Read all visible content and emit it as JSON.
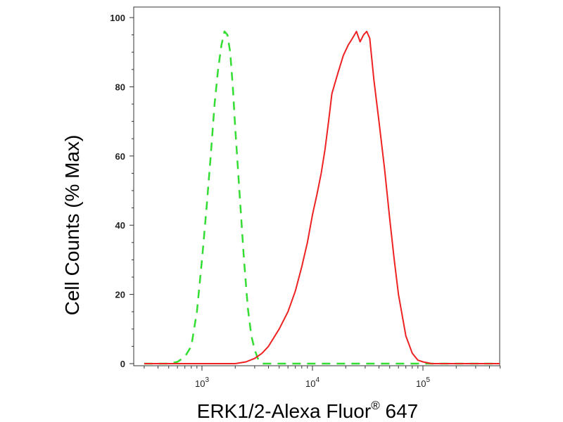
{
  "chart_data": {
    "type": "line",
    "xlabel": "ERK1/2-Alexa Fluor® 647",
    "xlabel_parts": {
      "main": "ERK1/2-Alexa Fluor",
      "sup": "®",
      "tail": " 647"
    },
    "ylabel": "Cell Counts (% Max)",
    "x_scale": "log",
    "xlim": [
      300,
      500000
    ],
    "ylim": [
      0,
      102
    ],
    "x_ticks": [
      {
        "value": 1000,
        "base": "10",
        "exp": "3"
      },
      {
        "value": 10000,
        "base": "10",
        "exp": "4"
      },
      {
        "value": 100000,
        "base": "10",
        "exp": "5"
      }
    ],
    "y_ticks": [
      {
        "value": 0,
        "label": "0"
      },
      {
        "value": 20,
        "label": "20"
      },
      {
        "value": 40,
        "label": "40"
      },
      {
        "value": 60,
        "label": "60"
      },
      {
        "value": 80,
        "label": "80"
      },
      {
        "value": 100,
        "label": "100"
      }
    ],
    "grid": false,
    "legend": "none",
    "series": [
      {
        "color": "#33dd33",
        "style": "dashed",
        "x": [
          300,
          500,
          600,
          700,
          800,
          900,
          1000,
          1100,
          1200,
          1300,
          1400,
          1500,
          1600,
          1700,
          1800,
          1900,
          2000,
          2200,
          2400,
          2600,
          2800,
          3000,
          3200,
          3500,
          4000,
          10000,
          100000,
          500000
        ],
        "y": [
          0,
          0,
          0.5,
          2,
          5,
          15,
          30,
          45,
          60,
          75,
          85,
          92,
          96,
          95,
          90,
          80,
          68,
          48,
          30,
          16,
          8,
          4,
          1.5,
          0,
          0,
          0,
          0,
          0
        ]
      },
      {
        "color": "#ee2222",
        "style": "solid",
        "x": [
          300,
          1000,
          2000,
          2500,
          3000,
          3500,
          4000,
          5000,
          6000,
          7000,
          8000,
          9000,
          10000,
          11000,
          12000,
          13000,
          14000,
          15000,
          17000,
          19000,
          21000,
          23000,
          25000,
          27000,
          29000,
          31000,
          33000,
          36000,
          40000,
          45000,
          50000,
          55000,
          60000,
          70000,
          80000,
          90000,
          100000,
          120000,
          150000,
          200000,
          500000
        ],
        "y": [
          0,
          0,
          0,
          0.5,
          1.5,
          3,
          5,
          10,
          15,
          21,
          28,
          35,
          43,
          49,
          55,
          62,
          70,
          78,
          84,
          89,
          92,
          94,
          96,
          93,
          95,
          96,
          94,
          82,
          70,
          56,
          42,
          30,
          20,
          8,
          3,
          1,
          0.5,
          0,
          0,
          0,
          0
        ]
      }
    ]
  }
}
